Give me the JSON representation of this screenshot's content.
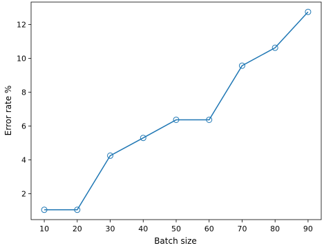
{
  "chart_data": {
    "type": "line",
    "xlabel": "Batch size",
    "ylabel": "Error rate %",
    "x": [
      10,
      20,
      30,
      40,
      50,
      60,
      70,
      80,
      90
    ],
    "series": [
      {
        "values": [
          1.05,
          1.05,
          4.25,
          5.3,
          6.37,
          6.37,
          9.57,
          10.63,
          12.75
        ]
      }
    ],
    "xticks": [
      10,
      20,
      30,
      40,
      50,
      60,
      70,
      80,
      90
    ],
    "yticks": [
      2,
      4,
      6,
      8,
      10,
      12
    ],
    "xlim": [
      6,
      94
    ],
    "ylim": [
      0.47,
      13.33
    ],
    "grid": false,
    "line_color": "#1f77b4",
    "marker": "hollow-circle"
  }
}
